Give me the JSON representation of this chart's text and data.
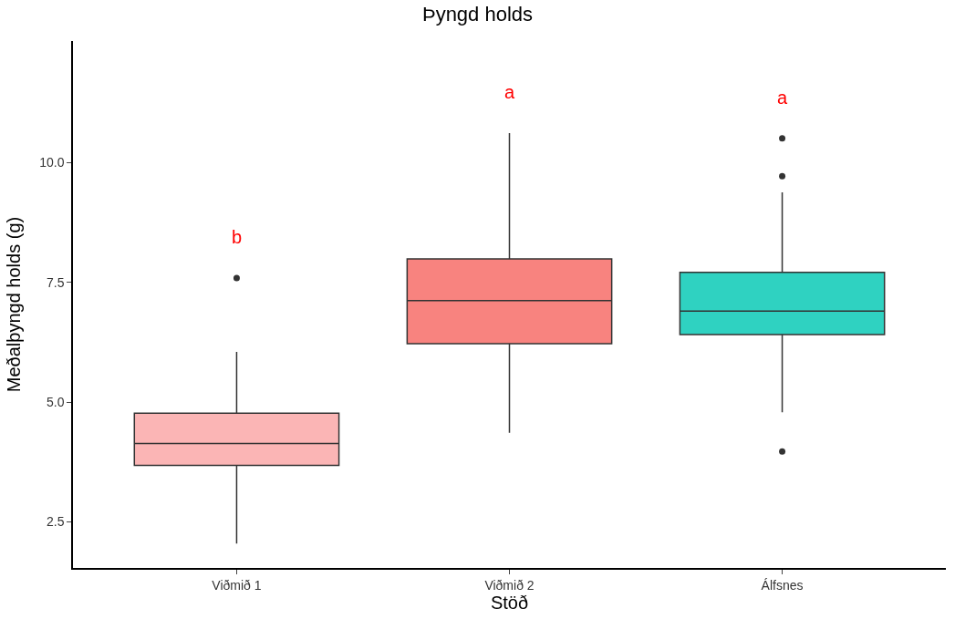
{
  "chart_data": {
    "type": "box",
    "title": "Þyngd holds",
    "xlabel": "Stöð",
    "ylabel": "Meðalþyngd holds (g)",
    "categories": [
      "Viðmið 1",
      "Viðmið 2",
      "Álfsnes"
    ],
    "colors": [
      "#fbb5b5",
      "#f8837f",
      "#2fd2c1"
    ],
    "boxes": [
      {
        "low": 2.05,
        "q1": 3.68,
        "median": 4.14,
        "q3": 4.77,
        "high": 6.05,
        "outliers": [
          7.59
        ]
      },
      {
        "low": 4.36,
        "q1": 6.22,
        "median": 7.12,
        "q3": 7.99,
        "high": 10.62
      },
      {
        "low": 4.79,
        "q1": 6.41,
        "median": 6.9,
        "q3": 7.71,
        "high": 9.38,
        "outliers": [
          10.51,
          9.72,
          3.97
        ]
      }
    ],
    "annotations": [
      "b",
      "a",
      "a"
    ],
    "ylim": [
      1.54,
      12.54
    ],
    "yticks": [
      {
        "value": 2.5,
        "label": "2.5"
      },
      {
        "value": 5,
        "label": "5.0"
      },
      {
        "value": 7.5,
        "label": "7.5"
      },
      {
        "value": 10,
        "label": "10.0"
      }
    ]
  }
}
